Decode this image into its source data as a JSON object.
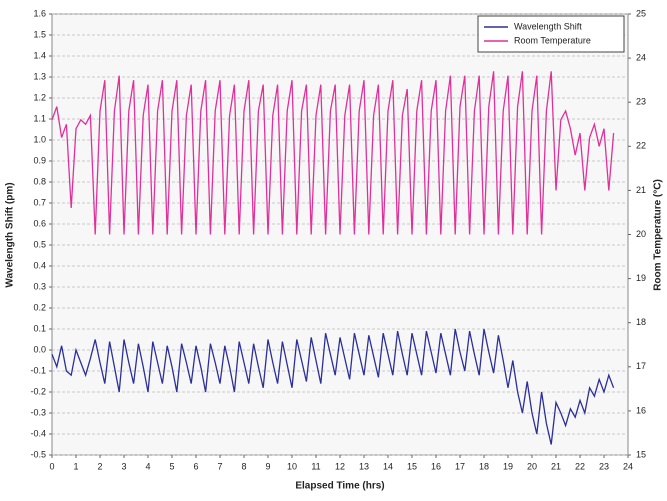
{
  "chart_data": {
    "type": "line",
    "xlabel": "Elapsed Time (hrs)",
    "ylabel": "Wavelength Shift (pm)",
    "y2label": "Room Temperature (°C)",
    "grid": true,
    "legend": "upper right",
    "xlim": [
      0,
      24
    ],
    "xticks": [
      0,
      1,
      2,
      3,
      4,
      5,
      6,
      7,
      8,
      9,
      10,
      11,
      12,
      13,
      14,
      15,
      16,
      17,
      18,
      19,
      20,
      21,
      22,
      23,
      24
    ],
    "ylim": [
      -0.5,
      1.6
    ],
    "yticks": [
      -0.5,
      -0.4,
      -0.3,
      -0.2,
      -0.1,
      {
        "value": 0,
        "label": "0.0"
      },
      0.1,
      0.2,
      0.3,
      0.4,
      0.5,
      0.6,
      0.7,
      0.8,
      0.9,
      {
        "value": 1,
        "label": "1.0"
      },
      1.1,
      1.2,
      1.3,
      1.4,
      1.5,
      1.6
    ],
    "y2lim": [
      15,
      25
    ],
    "y2ticks": [
      15,
      16,
      17,
      18,
      19,
      20,
      21,
      22,
      23,
      24,
      25
    ],
    "x": [
      0,
      0.2,
      0.4,
      0.6,
      0.8,
      1,
      1.2,
      1.4,
      1.6,
      1.8,
      2,
      2.2,
      2.4,
      2.6,
      2.8,
      3,
      3.2,
      3.4,
      3.6,
      3.8,
      4,
      4.2,
      4.4,
      4.6,
      4.8,
      5,
      5.2,
      5.4,
      5.6,
      5.8,
      6,
      6.2,
      6.4,
      6.6,
      6.8,
      7,
      7.2,
      7.4,
      7.6,
      7.8,
      8,
      8.2,
      8.4,
      8.6,
      8.8,
      9,
      9.2,
      9.4,
      9.6,
      9.8,
      10,
      10.2,
      10.4,
      10.6,
      10.8,
      11,
      11.2,
      11.4,
      11.6,
      11.8,
      12,
      12.2,
      12.4,
      12.6,
      12.8,
      13,
      13.2,
      13.4,
      13.6,
      13.8,
      14,
      14.2,
      14.4,
      14.6,
      14.8,
      15,
      15.2,
      15.4,
      15.6,
      15.8,
      16,
      16.2,
      16.4,
      16.6,
      16.8,
      17,
      17.2,
      17.4,
      17.6,
      17.8,
      18,
      18.2,
      18.4,
      18.6,
      18.8,
      19,
      19.2,
      19.4,
      19.6,
      19.8,
      20,
      20.2,
      20.4,
      20.6,
      20.8,
      21,
      21.2,
      21.4,
      21.6,
      21.8,
      22,
      22.2,
      22.4,
      22.6,
      22.8,
      23,
      23.2,
      23.4
    ],
    "series": [
      {
        "name": "Wavelength Shift",
        "color": "#2b2f9a",
        "values": [
          -0.02,
          -0.08,
          0.02,
          -0.1,
          -0.12,
          0.0,
          -0.06,
          -0.12,
          -0.04,
          0.05,
          -0.06,
          -0.16,
          0.04,
          -0.08,
          -0.2,
          0.05,
          -0.06,
          -0.16,
          0.03,
          -0.08,
          -0.2,
          0.04,
          -0.06,
          -0.16,
          0.02,
          -0.08,
          -0.2,
          0.03,
          -0.06,
          -0.16,
          0.02,
          -0.08,
          -0.2,
          0.03,
          -0.06,
          -0.16,
          0.02,
          -0.08,
          -0.2,
          0.04,
          -0.06,
          -0.16,
          0.03,
          -0.08,
          -0.18,
          0.05,
          -0.06,
          -0.16,
          0.04,
          -0.07,
          -0.18,
          0.05,
          -0.05,
          -0.15,
          0.06,
          -0.05,
          -0.16,
          0.08,
          -0.02,
          -0.12,
          0.06,
          -0.04,
          -0.14,
          0.08,
          -0.02,
          -0.12,
          0.07,
          -0.03,
          -0.13,
          0.08,
          -0.02,
          -0.12,
          0.09,
          -0.02,
          -0.12,
          0.08,
          -0.02,
          -0.12,
          0.09,
          -0.01,
          -0.11,
          0.08,
          -0.02,
          -0.12,
          0.1,
          -0.01,
          -0.1,
          0.09,
          -0.02,
          -0.12,
          0.1,
          -0.01,
          -0.11,
          0.07,
          -0.05,
          -0.18,
          -0.05,
          -0.2,
          -0.3,
          -0.15,
          -0.3,
          -0.4,
          -0.2,
          -0.35,
          -0.45,
          -0.25,
          -0.3,
          -0.36,
          -0.28,
          -0.32,
          -0.24,
          -0.3,
          -0.18,
          -0.22,
          -0.14,
          -0.2,
          -0.12,
          -0.18
        ]
      },
      {
        "name": "Room Temperature",
        "color": "#e0309a",
        "axis": "y2",
        "values": [
          22.6,
          22.9,
          22.2,
          22.5,
          20.6,
          22.4,
          22.6,
          22.5,
          22.7,
          20.0,
          22.8,
          23.5,
          20.0,
          22.8,
          23.6,
          20.0,
          22.8,
          23.5,
          20.0,
          22.7,
          23.4,
          20.0,
          22.8,
          23.5,
          20.0,
          22.8,
          23.5,
          20.0,
          22.7,
          23.4,
          20.0,
          22.8,
          23.5,
          20.0,
          22.8,
          23.5,
          20.0,
          22.7,
          23.4,
          20.0,
          22.8,
          23.5,
          20.0,
          22.8,
          23.4,
          20.0,
          22.7,
          23.4,
          20.0,
          22.8,
          23.5,
          20.0,
          22.8,
          23.4,
          20.0,
          22.7,
          23.4,
          20.0,
          22.8,
          23.4,
          20.0,
          22.7,
          23.4,
          20.0,
          22.8,
          23.5,
          20.0,
          22.7,
          23.4,
          20.0,
          22.8,
          23.5,
          20.0,
          22.7,
          23.3,
          20.0,
          22.8,
          23.5,
          20.0,
          22.8,
          23.5,
          20.0,
          22.8,
          23.6,
          20.0,
          22.9,
          23.6,
          20.0,
          22.8,
          23.6,
          20.0,
          22.9,
          23.7,
          20.0,
          22.8,
          23.6,
          20.0,
          22.9,
          23.7,
          20.0,
          22.8,
          23.6,
          20.0,
          22.8,
          23.7,
          21.0,
          22.6,
          22.8,
          22.4,
          21.8,
          22.3,
          21.0,
          22.2,
          22.5,
          22.0,
          22.4,
          21.0,
          22.3
        ]
      }
    ]
  }
}
